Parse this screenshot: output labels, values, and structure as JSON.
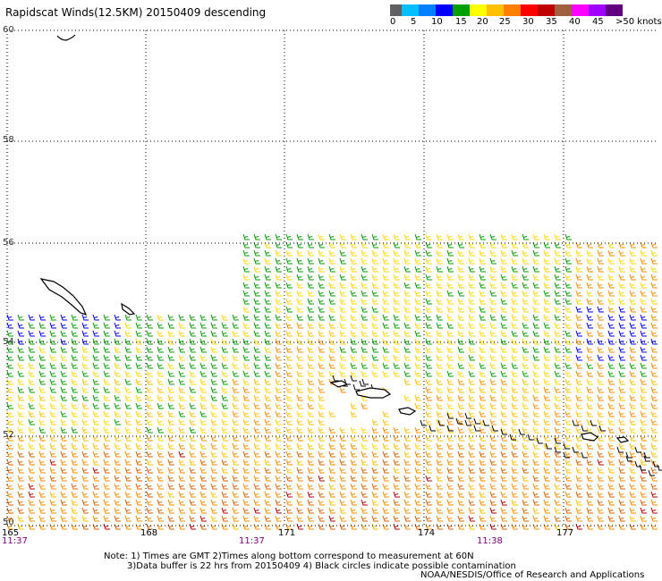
{
  "title": "Rapidscat Winds(12.5KM) 20150409 descending",
  "legend": {
    "colors": [
      "#606060",
      "#00c0ff",
      "#0080ff",
      "#0000ff",
      "#00a000",
      "#ffff00",
      "#ffc000",
      "#ff8000",
      "#ff0000",
      "#c00000",
      "#a06040",
      "#ff00ff",
      "#a000ff",
      "#600080"
    ],
    "labels": [
      "0",
      "5",
      "10",
      "15",
      "20",
      "25",
      "30",
      "35",
      "40",
      "45",
      ">50 knots"
    ]
  },
  "lat_labels": [
    "60",
    "58",
    "56",
    "54",
    "52",
    "50"
  ],
  "lon_labels": [
    "165",
    "168",
    "171",
    "174",
    "177"
  ],
  "time_labels": [
    "11:37",
    "11:37",
    "11:38"
  ],
  "notes": [
    "Note: 1) Times are GMT 2)Times along bottom correspond to measurement at 60N",
    "3)Data buffer is 22 hrs from 20150409 4) Black circles indicate possible contamination"
  ],
  "credit": "NOAA/NESDIS/Office of Research and Applications"
}
